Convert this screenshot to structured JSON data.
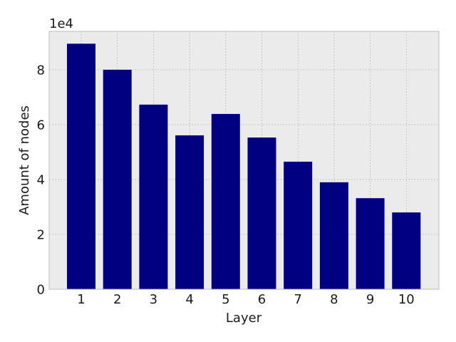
{
  "chart_data": {
    "type": "bar",
    "title": "",
    "xlabel": "Layer",
    "ylabel": "Amount of nodes",
    "y_multiplier_label": "1e4",
    "y_scale_factor": 10000,
    "categories": [
      "1",
      "2",
      "3",
      "4",
      "5",
      "6",
      "7",
      "8",
      "9",
      "10"
    ],
    "values": [
      89500,
      80000,
      67300,
      56100,
      63900,
      55300,
      46500,
      39000,
      33200,
      28000
    ],
    "ylim": [
      0,
      94000
    ],
    "yticks": [
      0,
      20000,
      40000,
      60000,
      80000
    ],
    "ytick_labels": [
      "0",
      "2",
      "4",
      "6",
      "8"
    ],
    "grid": true,
    "colors": {
      "bar": "#000080",
      "plot_background": "#ebebeb",
      "grid": "#b0b0b0",
      "frame": "#bcbcbc"
    }
  }
}
